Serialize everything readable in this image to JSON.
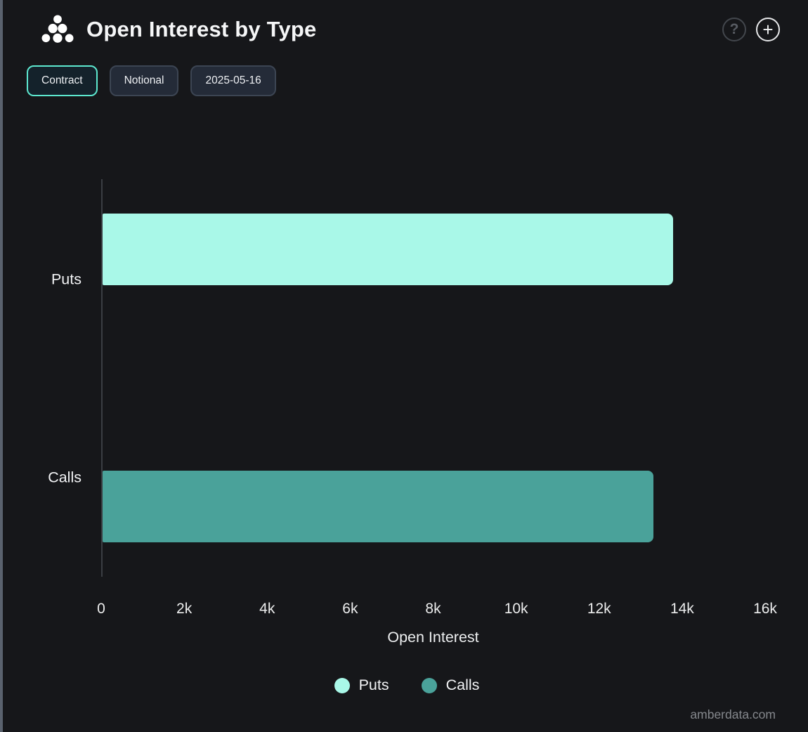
{
  "header": {
    "title": "Open Interest by Type",
    "help_label": "?",
    "add_label": "+"
  },
  "toolbar": {
    "buttons": [
      {
        "label": "Contract",
        "active": true
      },
      {
        "label": "Notional",
        "active": false
      },
      {
        "label": "2025-05-16",
        "active": false
      }
    ]
  },
  "chart_data": {
    "type": "bar",
    "orientation": "horizontal",
    "title": "Open Interest by Type",
    "categories": [
      "Puts",
      "Calls"
    ],
    "series": [
      {
        "name": "Puts",
        "value": 13750,
        "color": "#a9f8e8"
      },
      {
        "name": "Calls",
        "value": 13270,
        "color": "#4aa29a"
      }
    ],
    "xlabel": "Open Interest",
    "ylabel": "",
    "xlim": [
      0,
      16000
    ],
    "xtick_values": [
      0,
      2000,
      4000,
      6000,
      8000,
      10000,
      12000,
      14000,
      16000
    ],
    "xtick_labels": [
      "0",
      "2k",
      "4k",
      "6k",
      "8k",
      "10k",
      "12k",
      "14k",
      "16k"
    ],
    "grid": false,
    "legend_position": "bottom",
    "legend": [
      {
        "label": "Puts",
        "color": "#a9f8e8"
      },
      {
        "label": "Calls",
        "color": "#4aa29a"
      }
    ]
  },
  "footer": {
    "watermark": "amberdata.com"
  },
  "colors": {
    "background": "#16171a",
    "accent_active_border": "#5de8cf",
    "puts_bar": "#a9f8e8",
    "calls_bar": "#4aa29a",
    "axis_line": "#3a3e43",
    "left_edge": "#5a626e"
  }
}
